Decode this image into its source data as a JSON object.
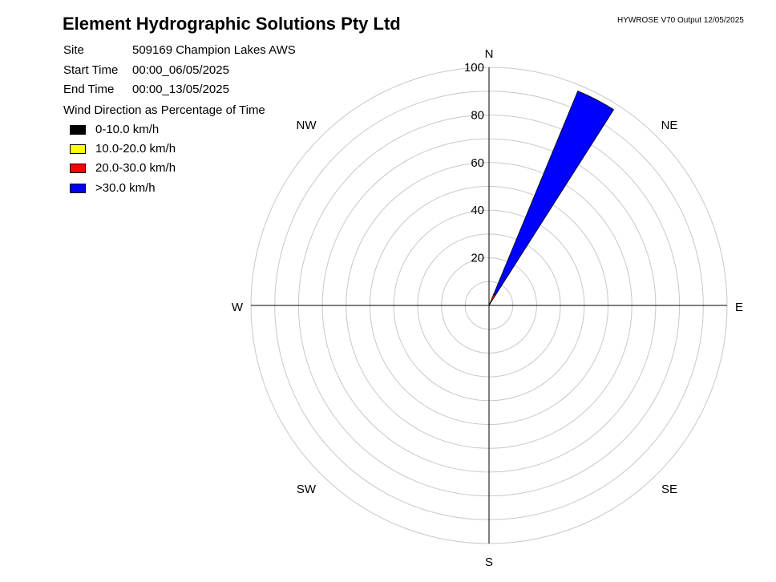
{
  "header": {
    "company": "Element Hydrographic Solutions Pty Ltd",
    "version": "HYWROSE V70  Output 12/05/2025"
  },
  "info": {
    "site_label": "Site",
    "site_value": "509169  Champion Lakes AWS",
    "start_label": "Start Time",
    "start_value": "00:00_06/05/2025",
    "end_label": "End Time",
    "end_value": "00:00_13/05/2025",
    "subtitle": "Wind Direction as Percentage of Time"
  },
  "colors": {
    "grid": "#c8c8c8",
    "axis": "#000000"
  },
  "chart_data": {
    "type": "wind-rose",
    "radial_max": 100,
    "radial_ticks": [
      20,
      40,
      60,
      80,
      100
    ],
    "ring_step": 10,
    "directions": [
      "N",
      "NE",
      "E",
      "SE",
      "S",
      "SW",
      "W",
      "NW"
    ],
    "legend": [
      {
        "label": "0-10.0 km/h",
        "color": "#000000"
      },
      {
        "label": "10.0-20.0 km/h",
        "color": "#ffff00"
      },
      {
        "label": "20.0-30.0 km/h",
        "color": "#ff0000"
      },
      {
        "label": ">30.0 km/h",
        "color": "#0000ff"
      }
    ],
    "sectors": [
      {
        "from_deg": 22.5,
        "to_deg": 32.5,
        "segments": [
          {
            "speed_class": "0-10.0 km/h",
            "percent": 0.5
          },
          {
            "speed_class": "10.0-20.0 km/h",
            "percent": 0.3
          },
          {
            "speed_class": "20.0-30.0 km/h",
            "percent": 4.2
          },
          {
            "speed_class": ">30.0 km/h",
            "percent": 92.5
          }
        ]
      }
    ]
  }
}
